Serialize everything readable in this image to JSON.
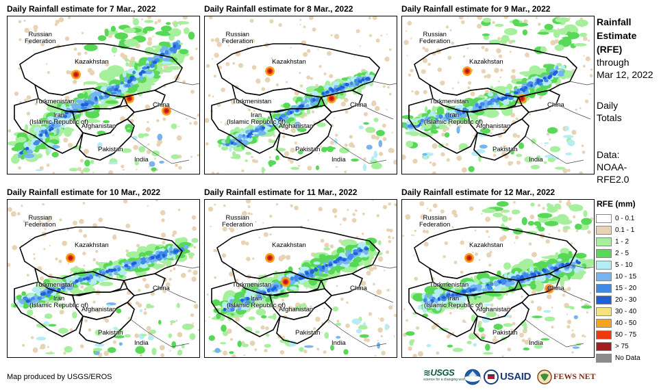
{
  "panels": [
    {
      "title": "Daily Rainfall estimate for 7 Mar., 2022"
    },
    {
      "title": "Daily Rainfall estimate for 8 Mar., 2022"
    },
    {
      "title": "Daily Rainfall estimate for 9 Mar., 2022"
    },
    {
      "title": "Daily Rainfall estimate for 10 Mar., 2022"
    },
    {
      "title": "Daily Rainfall estimate for 11 Mar., 2022"
    },
    {
      "title": "Daily Rainfall estimate for 12 Mar., 2022"
    }
  ],
  "map_labels": {
    "russia": "Russian\nFederation",
    "kazakhstan": "Kazakhstan",
    "turkmenistan": "Turkmenistan",
    "iran": "Iran\n(Islamic Republic of)",
    "afghanistan": "Afghanistan",
    "pakistan": "Pakistan",
    "india": "India",
    "china": "China"
  },
  "side": {
    "title_line1": "Rainfall",
    "title_line2": "Estimate",
    "title_line3": "(RFE)",
    "through": "through",
    "date": "Mar 12, 2022",
    "daily1": "Daily",
    "daily2": "Totals",
    "data1": "Data:",
    "data2": "NOAA-",
    "data3": "RFE2.0"
  },
  "legend": {
    "title": "RFE (mm)",
    "items": [
      {
        "label": "0 - 0.1",
        "color": "#ffffff"
      },
      {
        "label": "0.1 - 1",
        "color": "#e8d3b4"
      },
      {
        "label": "1 - 2",
        "color": "#a6ef9c"
      },
      {
        "label": "2 - 5",
        "color": "#57d957"
      },
      {
        "label": "5 - 10",
        "color": "#b6ecf4"
      },
      {
        "label": "10 - 15",
        "color": "#74b4f0"
      },
      {
        "label": "15 - 20",
        "color": "#3f8ae6"
      },
      {
        "label": "20 - 30",
        "color": "#1f5fd8"
      },
      {
        "label": "30 - 40",
        "color": "#f4e27a"
      },
      {
        "label": "40 - 50",
        "color": "#f6a31c"
      },
      {
        "label": "50 - 75",
        "color": "#ee3a10"
      },
      {
        "label": "> 75",
        "color": "#a51d1d"
      },
      {
        "label": "No Data",
        "color": "#8c8c8c"
      }
    ]
  },
  "credit": "Map produced by USGS/EROS",
  "logos": {
    "usgs": "≋USGS",
    "usgs_tag": "science for a changing world",
    "usaid": "USAID",
    "fewsnet": "FEWS NET"
  }
}
